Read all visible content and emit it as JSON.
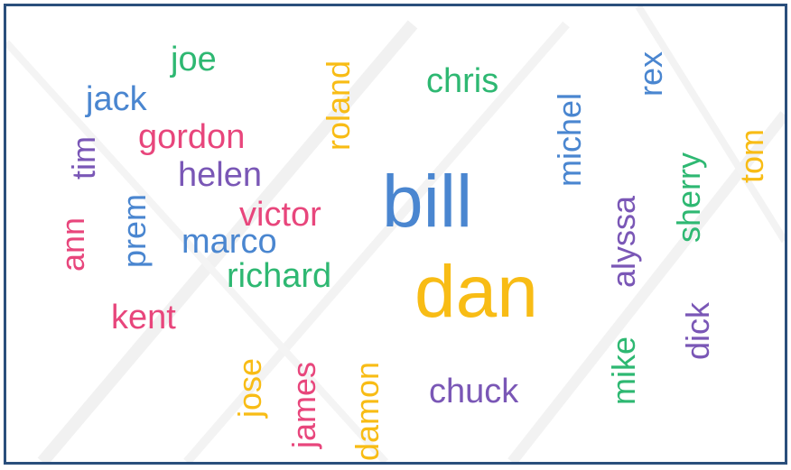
{
  "words": {
    "joe": "joe",
    "jack": "jack",
    "gordon": "gordon",
    "tim": "tim",
    "helen": "helen",
    "prem": "prem",
    "ann": "ann",
    "victor": "victor",
    "marco": "marco",
    "richard": "richard",
    "kent": "kent",
    "roland": "roland",
    "chris": "chris",
    "bill": "bill",
    "dan": "dan",
    "michel": "michel",
    "rex": "rex",
    "tom": "tom",
    "sherry": "sherry",
    "alyssa": "alyssa",
    "dick": "dick",
    "mike": "mike",
    "chuck": "chuck",
    "jose": "jose",
    "james": "james",
    "damon": "damon"
  },
  "colors": {
    "pink": "#e8467c",
    "green": "#2eb872",
    "blue": "#4a86d0",
    "purple": "#7a57b6",
    "yellow": "#f8bc15",
    "frame": "#2a4f7c"
  }
}
